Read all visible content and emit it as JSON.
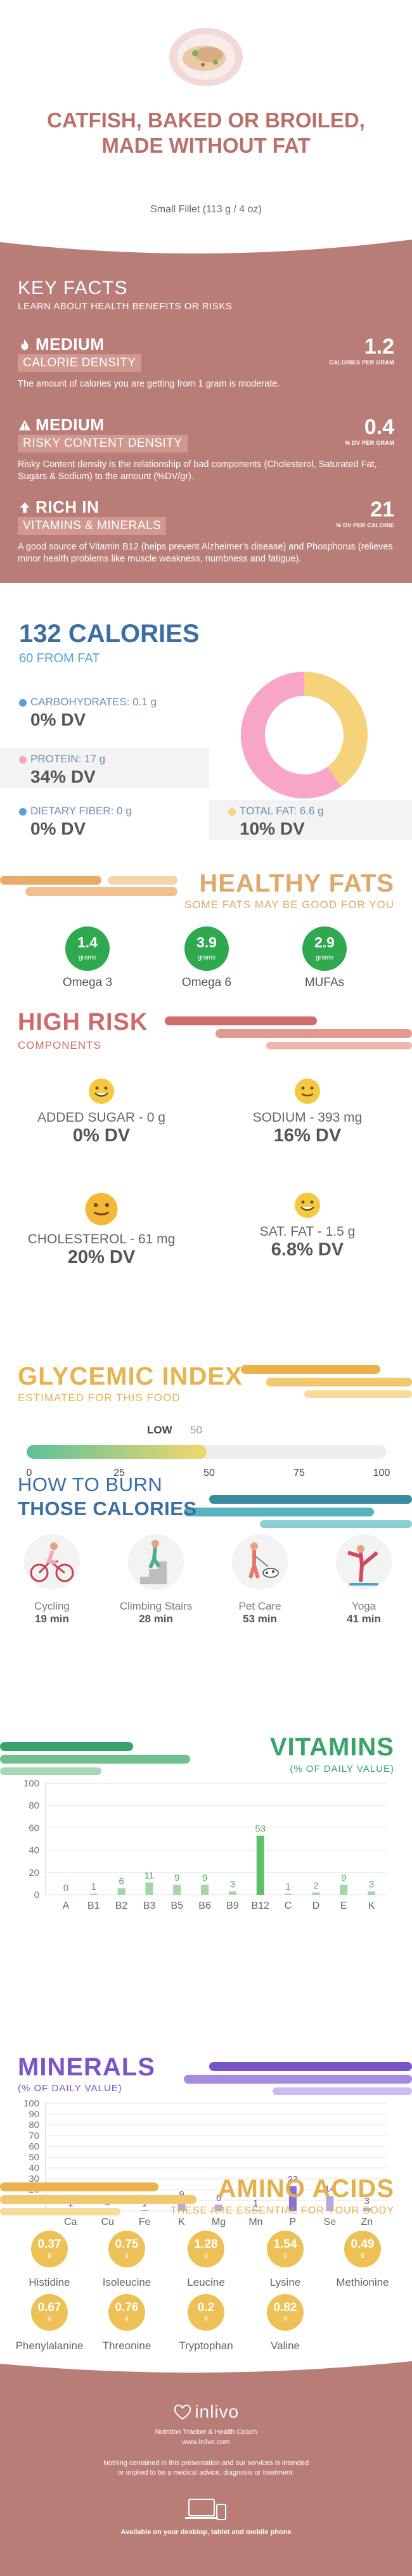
{
  "header": {
    "title": "CATFISH, BAKED OR BROILED, MADE WITHOUT FAT",
    "serving": "Small Fillet (113 g / 4 oz)"
  },
  "key_facts": {
    "title": "KEY FACTS",
    "subtitle": "LEARN ABOUT HEALTH BENEFITS OR RISKS",
    "items": [
      {
        "level": "MEDIUM",
        "label": "CALORIE DENSITY",
        "value": "1.2",
        "unit": "CALORIES PER GRAM",
        "desc": "The amount of calories you are getting from 1 gram is moderate."
      },
      {
        "level": "MEDIUM",
        "label": "RISKY CONTENT DENSITY",
        "value": "0.4",
        "unit": "% DV PER GRAM",
        "desc": "Risky Content density is the relationship of bad components (Cholesterol, Saturated Fat, Sugars & Sodium) to the amount (%DV/gr)."
      },
      {
        "level": "RICH  IN",
        "label": "VITAMINS & MINERALS",
        "value": "21",
        "unit": "% DV PER CALORIE",
        "desc": "A good source of Vitamin B12 (helps prevent Alzheimer's disease) and Phosphorus (relieves minor health problems like muscle weakness, numbness and fatigue)."
      }
    ]
  },
  "calories": {
    "title": "132 CALORIES",
    "from_fat": "60 FROM FAT",
    "nutrients": [
      {
        "label": "CARBOHYDRATES: 0.1 g",
        "dv": "0% DV",
        "color": "#5aa0d8"
      },
      {
        "label": "PROTEIN: 17 g",
        "dv": "34% DV",
        "color": "#f3a6c5"
      },
      {
        "label": "DIETARY FIBER: 0 g",
        "dv": "0% DV",
        "color": "#5aa0d8"
      },
      {
        "label": "TOTAL FAT: 6.6 g",
        "dv": "10% DV",
        "color": "#f6d27a"
      }
    ],
    "donut": {
      "protein_fraction": 0.6,
      "fat_fraction": 0.4,
      "protein_color": "#f7a6c8",
      "fat_color": "#f6d27a"
    }
  },
  "healthy_fats": {
    "title": "HEALTHY FATS",
    "subtitle": "SOME FATS MAY BE GOOD FOR YOU",
    "items": [
      {
        "value": "1.4",
        "unit": "grams",
        "name": "Omega 3"
      },
      {
        "value": "3.9",
        "unit": "grams",
        "name": "Omega 6"
      },
      {
        "value": "2.9",
        "unit": "grams",
        "name": "MUFAs"
      }
    ]
  },
  "high_risk": {
    "title": "HIGH RISK",
    "subtitle": "COMPONENTS",
    "items": [
      {
        "label": "ADDED SUGAR - 0 g",
        "dv": "0% DV"
      },
      {
        "label": "SODIUM - 393 mg",
        "dv": "16% DV"
      },
      {
        "label": "CHOLESTEROL - 61 mg",
        "dv": "20% DV"
      },
      {
        "label": "SAT. FAT - 1.5 g",
        "dv": "6.8% DV"
      }
    ]
  },
  "glycemic": {
    "title": "GLYCEMIC INDEX",
    "subtitle": "ESTIMATED FOR THIS FOOD",
    "level": "LOW",
    "value": "50",
    "value_fraction": 0.5,
    "ticks": [
      "0",
      "25",
      "50",
      "75",
      "100"
    ]
  },
  "burn": {
    "title_line1": "HOW TO BURN",
    "title_line2": "THOSE CALORIES",
    "activities": [
      {
        "name": "Cycling",
        "minutes": "19 min"
      },
      {
        "name": "Climbing Stairs",
        "minutes": "28 min"
      },
      {
        "name": "Pet Care",
        "minutes": "53 min"
      },
      {
        "name": "Yoga",
        "minutes": "41 min"
      }
    ]
  },
  "vitamins": {
    "title": "VITAMINS",
    "subtitle": "(% OF DAILY VALUE)"
  },
  "minerals": {
    "title": "MINERALS",
    "subtitle": "(% OF DAILY VALUE)"
  },
  "amino": {
    "title": "AMINO ACIDS",
    "subtitle": "THESE ARE ESSENTIAL FOR YOUR BODY",
    "items": [
      {
        "value": "0.37",
        "unit": "g",
        "name": "Histidine"
      },
      {
        "value": "0.75",
        "unit": "g",
        "name": "Isoleucine"
      },
      {
        "value": "1.28",
        "unit": "g",
        "name": "Leucine"
      },
      {
        "value": "1.54",
        "unit": "g",
        "name": "Lysine"
      },
      {
        "value": "0.49",
        "unit": "g",
        "name": "Methionine"
      },
      {
        "value": "0.67",
        "unit": "g",
        "name": "Phenylalanine"
      },
      {
        "value": "0.76",
        "unit": "g",
        "name": "Threonine"
      },
      {
        "value": "0.2",
        "unit": "g",
        "name": "Tryptophan"
      },
      {
        "value": "0.82",
        "unit": "g",
        "name": "Valine"
      }
    ]
  },
  "footer": {
    "brand": "inlivo",
    "tagline": "Nutrition Tracker & Health Coach",
    "url": "www.inlivo.com",
    "disclaimer": "Nothing contained in this presentation and our services is intended or implied to be a medical advice, diagnosis or treatment.",
    "available": "Available on your desktop, tablet and mobile phone"
  },
  "chart_data": [
    {
      "type": "bar",
      "categories": [
        "A",
        "B1",
        "B2",
        "B3",
        "B5",
        "B6",
        "B9",
        "B12",
        "C",
        "D",
        "E",
        "K"
      ],
      "values": [
        0,
        1,
        6,
        11,
        9,
        9,
        3,
        53,
        1,
        2,
        9,
        3
      ],
      "ylim": [
        0,
        100
      ],
      "yticks": [
        0,
        20,
        40,
        60,
        80,
        100
      ],
      "color": "#a5d6a7",
      "highlight_color": "#5cbf6a",
      "label_color": "#4caf6a",
      "grid": true
    },
    {
      "type": "bar",
      "categories": [
        "Ca",
        "Cu",
        "Fe",
        "K",
        "Mg",
        "Mn",
        "P",
        "Se",
        "Zn"
      ],
      "values": [
        1,
        2,
        1,
        9,
        6,
        1,
        23,
        14,
        3
      ],
      "ylim": [
        0,
        100
      ],
      "yticks": [
        0,
        10,
        20,
        30,
        40,
        50,
        60,
        70,
        80,
        90,
        100
      ],
      "color": "#b9a5e6",
      "highlight_color": "#8b6fd6",
      "label_color": "#7b55c7",
      "grid": true
    }
  ]
}
